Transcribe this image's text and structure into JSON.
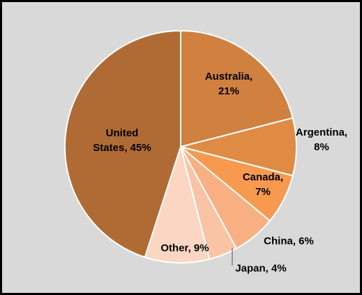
{
  "chart_data": {
    "type": "pie",
    "values": [
      21,
      8,
      7,
      6,
      4,
      9,
      45
    ],
    "value_labels": [
      "Australia, 21%",
      "Argentina, 8%",
      "Canada, 7%",
      "China, 6%",
      "Japan, 4%",
      "Other, 9%",
      "United States, 45%"
    ],
    "colors": [
      "#d0803f",
      "#e08b43",
      "#f79a50",
      "#f8b083",
      "#f9c4a5",
      "#fbd6c3",
      "#b06b34"
    ]
  }
}
